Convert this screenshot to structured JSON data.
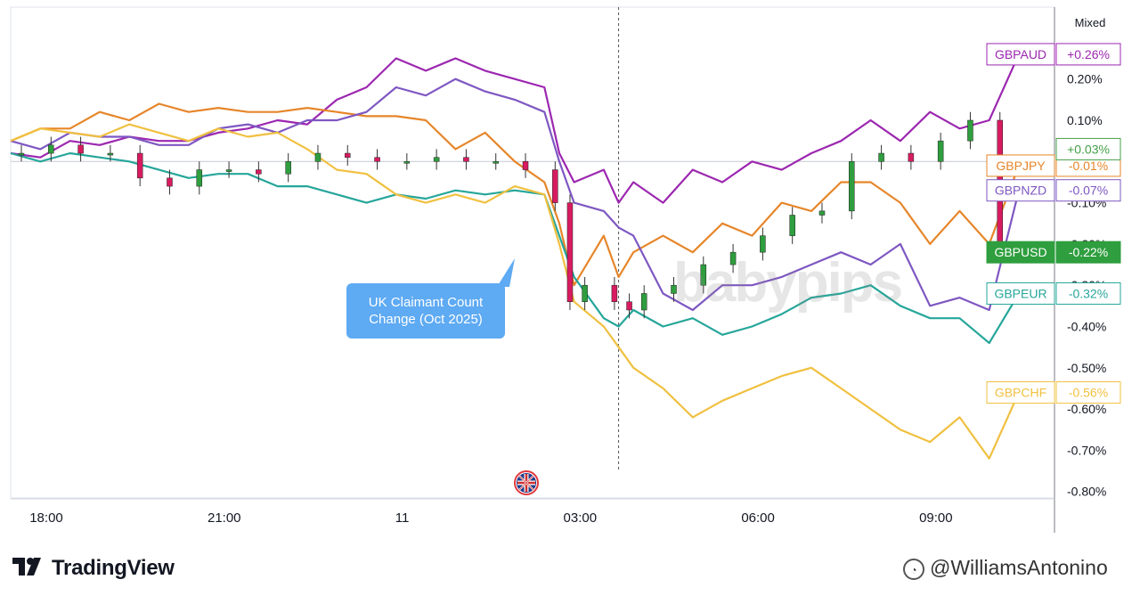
{
  "chart_data": {
    "type": "line",
    "scale_mode": "Mixed",
    "x_tick_labels": [
      "18:00",
      "21:00",
      "11",
      "03:00",
      "06:00",
      "09:00"
    ],
    "y_tick_labels": [
      "0.20%",
      "0.10%",
      "-0.10%",
      "-0.20%",
      "-0.30%",
      "-0.40%",
      "-0.50%",
      "-0.60%",
      "-0.70%",
      "-0.80%"
    ],
    "y_tick_values": [
      0.2,
      0.1,
      -0.1,
      -0.2,
      -0.3,
      -0.4,
      -0.5,
      -0.6,
      -0.7,
      -0.8
    ],
    "ylim": [
      -0.8,
      0.3
    ],
    "event_x": 10.25,
    "x_hours_since_first_tick": [
      0,
      0.5,
      1,
      1.5,
      2,
      2.5,
      3,
      3.5,
      4,
      4.5,
      5,
      5.5,
      6,
      6.5,
      7,
      7.5,
      8,
      8.5,
      9,
      9.25,
      9.5,
      10,
      10.25,
      10.5,
      11,
      11.5,
      12,
      12.5,
      13,
      13.5,
      14,
      14.5,
      15,
      15.5,
      16,
      16.5,
      17
    ],
    "series": [
      {
        "name": "GBPAUD",
        "label": "+0.26%",
        "color": "#9c27b0",
        "values": [
          0.02,
          0.01,
          0.05,
          0.04,
          0.06,
          0.05,
          0.05,
          0.07,
          0.08,
          0.1,
          0.09,
          0.15,
          0.18,
          0.25,
          0.22,
          0.25,
          0.22,
          0.2,
          0.18,
          0.02,
          -0.05,
          -0.02,
          -0.1,
          -0.05,
          -0.1,
          -0.02,
          -0.05,
          0.0,
          -0.02,
          0.02,
          0.05,
          0.1,
          0.05,
          0.12,
          0.08,
          0.1,
          0.26
        ]
      },
      {
        "name": "GBPJPY",
        "label": "-0.01%",
        "color": "#e6862a",
        "values": [
          0.05,
          0.08,
          0.08,
          0.12,
          0.1,
          0.14,
          0.12,
          0.13,
          0.12,
          0.12,
          0.13,
          0.12,
          0.11,
          0.11,
          0.1,
          0.03,
          0.07,
          0.0,
          -0.05,
          -0.15,
          -0.3,
          -0.18,
          -0.28,
          -0.22,
          -0.18,
          -0.22,
          -0.15,
          -0.18,
          -0.1,
          -0.12,
          -0.05,
          -0.05,
          -0.1,
          -0.2,
          -0.12,
          -0.2,
          -0.01
        ]
      },
      {
        "name": "GBPNZD",
        "label": "-0.07%",
        "color": "#7e57c2",
        "values": [
          0.05,
          0.03,
          0.07,
          0.06,
          0.06,
          0.04,
          0.04,
          0.08,
          0.09,
          0.07,
          0.1,
          0.1,
          0.12,
          0.18,
          0.16,
          0.2,
          0.17,
          0.15,
          0.12,
          0.0,
          -0.1,
          -0.12,
          -0.16,
          -0.18,
          -0.32,
          -0.36,
          -0.3,
          -0.3,
          -0.28,
          -0.25,
          -0.22,
          -0.25,
          -0.2,
          -0.35,
          -0.33,
          -0.36,
          -0.07
        ]
      },
      {
        "name": "GBPUSD",
        "label": "-0.22%",
        "color": "#2e9e3e",
        "values": [
          0.02,
          0.02,
          0.04,
          0.02,
          0.02,
          -0.04,
          -0.06,
          -0.02,
          -0.02,
          -0.03,
          0.0,
          0.02,
          0.01,
          0.0,
          0.0,
          0.01,
          0.0,
          0.0,
          -0.02,
          -0.1,
          -0.34,
          -0.3,
          -0.34,
          -0.36,
          -0.32,
          -0.3,
          -0.25,
          -0.22,
          -0.18,
          -0.13,
          -0.12,
          0.0,
          0.02,
          0.0,
          0.05,
          0.1,
          -0.22
        ]
      },
      {
        "name": "GBPEUR",
        "label": "-0.32%",
        "color": "#26a69a",
        "values": [
          0.02,
          0.0,
          0.02,
          0.01,
          0.0,
          -0.02,
          -0.04,
          -0.03,
          -0.03,
          -0.06,
          -0.06,
          -0.08,
          -0.1,
          -0.08,
          -0.09,
          -0.07,
          -0.08,
          -0.07,
          -0.08,
          -0.18,
          -0.28,
          -0.38,
          -0.4,
          -0.36,
          -0.4,
          -0.38,
          -0.42,
          -0.4,
          -0.37,
          -0.33,
          -0.32,
          -0.3,
          -0.35,
          -0.38,
          -0.38,
          -0.44,
          -0.32
        ]
      },
      {
        "name": "GBPCHF",
        "label": "-0.56%",
        "color": "#f0c040",
        "values": [
          0.05,
          0.08,
          0.07,
          0.06,
          0.09,
          0.07,
          0.05,
          0.08,
          0.06,
          0.07,
          0.03,
          -0.02,
          -0.03,
          -0.08,
          -0.1,
          -0.08,
          -0.1,
          -0.06,
          -0.08,
          -0.2,
          -0.34,
          -0.4,
          -0.45,
          -0.5,
          -0.55,
          -0.62,
          -0.58,
          -0.55,
          -0.52,
          -0.5,
          -0.55,
          -0.6,
          -0.65,
          -0.68,
          -0.62,
          -0.72,
          -0.56
        ]
      },
      {
        "name": "",
        "label": "+0.03%",
        "color": "#43a047",
        "values": [
          0.03,
          0.03
        ],
        "x": [
          0,
          17
        ]
      }
    ]
  },
  "annotations": {
    "event_callout": "UK Claimant Count\nChange (Oct 2025)"
  },
  "watermark": "babypips",
  "branding": {
    "logo_text": "TradingView",
    "author": "@WilliamsAntonino"
  }
}
